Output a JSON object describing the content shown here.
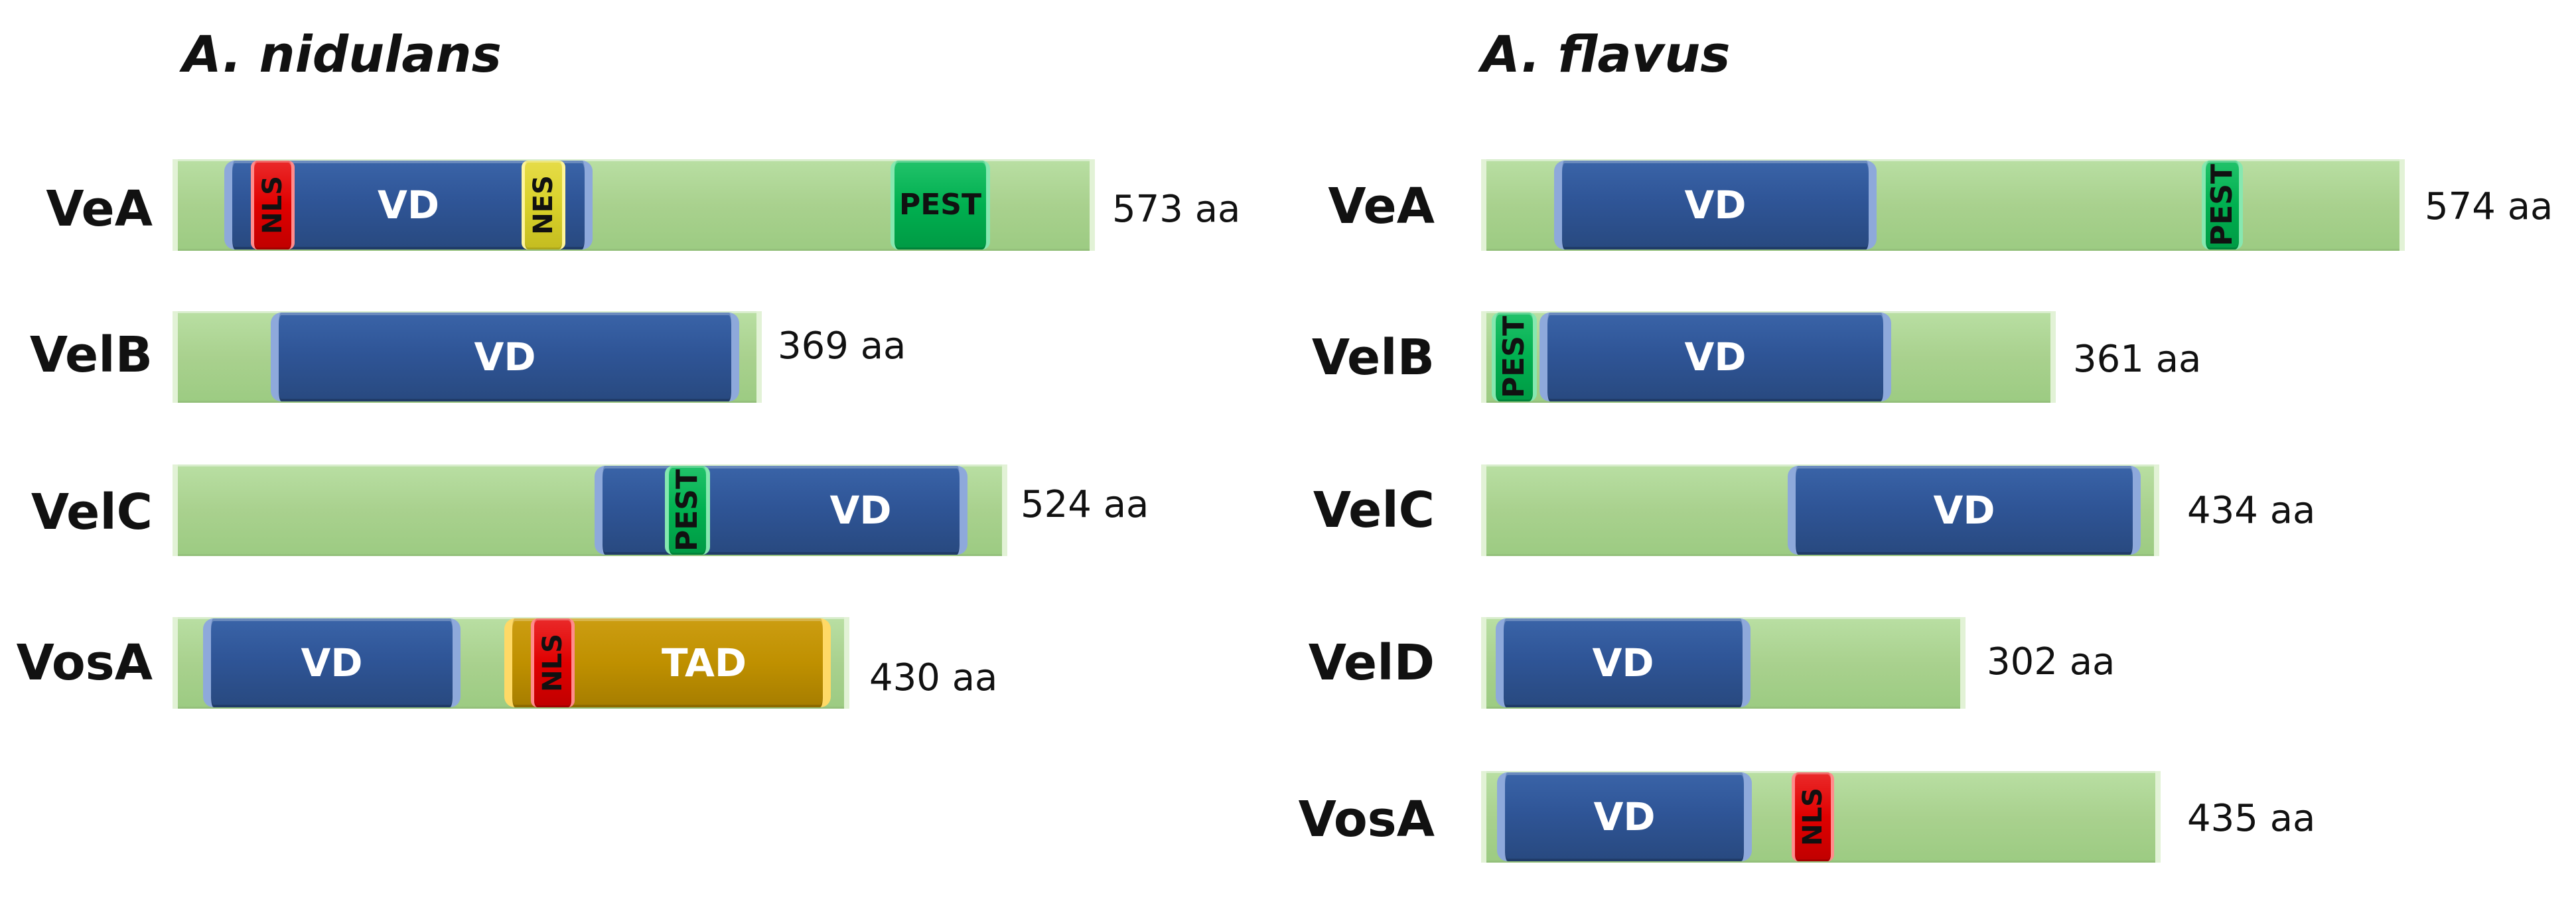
{
  "colors": {
    "protein_bar": "#a9d18e",
    "VD": "#2f5597",
    "TAD": "#bf9000",
    "PEST": "#00b050",
    "NLS": "#e00000",
    "NES": "#d9d12a"
  },
  "panels": [
    {
      "title": "A. nidulans",
      "proteins": [
        {
          "name": "VeA",
          "length": "573 aa",
          "domains": [
            {
              "label": "NLS"
            },
            {
              "label": "VD"
            },
            {
              "label": "NES"
            },
            {
              "label": "PEST"
            }
          ]
        },
        {
          "name": "VelB",
          "length": "369 aa",
          "domains": [
            {
              "label": "VD"
            }
          ]
        },
        {
          "name": "VelC",
          "length": "524 aa",
          "domains": [
            {
              "label": "PEST"
            },
            {
              "label": "VD"
            }
          ]
        },
        {
          "name": "VosA",
          "length": "430 aa",
          "domains": [
            {
              "label": "VD"
            },
            {
              "label": "TAD"
            },
            {
              "label": "NLS"
            }
          ]
        }
      ]
    },
    {
      "title": "A. flavus",
      "proteins": [
        {
          "name": "VeA",
          "length": "574 aa",
          "domains": [
            {
              "label": "VD"
            },
            {
              "label": "PEST"
            }
          ]
        },
        {
          "name": "VelB",
          "length": "361 aa",
          "domains": [
            {
              "label": "PEST"
            },
            {
              "label": "VD"
            }
          ]
        },
        {
          "name": "VelC",
          "length": "434 aa",
          "domains": [
            {
              "label": "VD"
            }
          ]
        },
        {
          "name": "VelD",
          "length": "302 aa",
          "domains": [
            {
              "label": "VD"
            }
          ]
        },
        {
          "name": "VosA",
          "length": "435 aa",
          "domains": [
            {
              "label": "VD"
            },
            {
              "label": "NLS"
            }
          ]
        }
      ]
    }
  ]
}
